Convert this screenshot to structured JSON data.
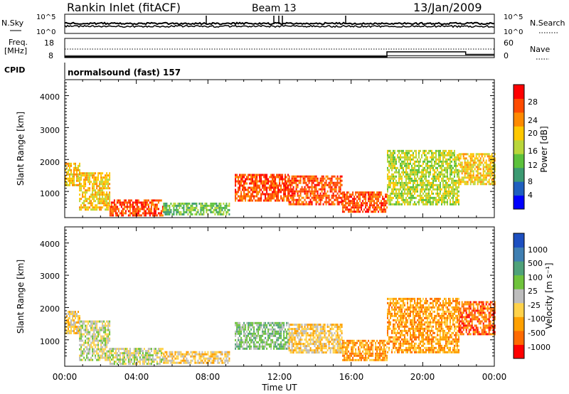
{
  "header": {
    "station": "Rankin Inlet (fitACF)",
    "beam": "Beam 13",
    "date": "13/Jan/2009"
  },
  "top_panel": {
    "left_label": "N.Sky",
    "left_ticks": [
      "10^5",
      "10^0"
    ],
    "right_label": "N.Search",
    "right_ticks": [
      "10^5",
      "10^0"
    ]
  },
  "freq_panel": {
    "left_label_1": "Freq.",
    "left_label_2": "[MHz]",
    "left_ticks": [
      "18",
      "8"
    ],
    "right_label": "Nave",
    "right_ticks": [
      "60",
      "0"
    ],
    "cpid_label": "CPID",
    "cpid_text": "normalsound (fast) 157"
  },
  "power_panel": {
    "ylabel": "Slant Range [km]",
    "yticks": [
      "4000",
      "3000",
      "2000",
      "1000"
    ],
    "colorbar_label": "Power [dB]",
    "colorbar_ticks": [
      "28",
      "24",
      "20",
      "16",
      "12",
      "8",
      "4"
    ],
    "colors": [
      "#0000ff",
      "#1f5fbf",
      "#3c9a72",
      "#5cc13c",
      "#b9d63a",
      "#ffc800",
      "#ff8a00",
      "#ff4b00",
      "#ff0000"
    ]
  },
  "velocity_panel": {
    "ylabel": "Slant Range [km]",
    "yticks": [
      "4000",
      "3000",
      "2000",
      "1000"
    ],
    "colorbar_label": "Velocity [m s⁻¹]",
    "colorbar_ticks": [
      "1000",
      "500",
      "100",
      "25",
      "-25",
      "-100",
      "-500",
      "-1000"
    ],
    "colors": [
      "#1d4fc0",
      "#3f7fb2",
      "#4fa27a",
      "#6fc33c",
      "#bdbdbd",
      "#ffd24a",
      "#ffa000",
      "#ff6a00",
      "#ff0000"
    ]
  },
  "x_axis": {
    "label": "Time UT",
    "ticks": [
      "00:00",
      "04:00",
      "08:00",
      "12:00",
      "16:00",
      "20:00",
      "00:00"
    ]
  },
  "chart_data": {
    "type": "heatmap",
    "x_unit": "hours UT",
    "xlim": [
      0,
      24
    ],
    "ylim_km": [
      180,
      4500
    ],
    "power_regions_dB": [
      {
        "t": [
          0.0,
          0.8
        ],
        "range_km": [
          1200,
          1900
        ],
        "power": 20
      },
      {
        "t": [
          0.8,
          2.5
        ],
        "range_km": [
          400,
          1600
        ],
        "power": 18
      },
      {
        "t": [
          2.5,
          5.5
        ],
        "range_km": [
          250,
          750
        ],
        "power": 26
      },
      {
        "t": [
          5.5,
          9.2
        ],
        "range_km": [
          300,
          650
        ],
        "power": 14
      },
      {
        "t": [
          9.5,
          12.5
        ],
        "range_km": [
          700,
          1550
        ],
        "power": 27
      },
      {
        "t": [
          12.5,
          15.5
        ],
        "range_km": [
          600,
          1500
        ],
        "power": 25
      },
      {
        "t": [
          15.5,
          18.0
        ],
        "range_km": [
          350,
          1000
        ],
        "power": 28
      },
      {
        "t": [
          18.0,
          22.0
        ],
        "range_km": [
          600,
          2300
        ],
        "power": 17
      },
      {
        "t": [
          22.0,
          24.0
        ],
        "range_km": [
          1200,
          2200
        ],
        "power": 18
      }
    ],
    "velocity_regions_ms": [
      {
        "t": [
          0.0,
          0.8
        ],
        "range_km": [
          1200,
          1900
        ],
        "velocity": -300
      },
      {
        "t": [
          0.8,
          2.5
        ],
        "range_km": [
          400,
          1600
        ],
        "velocity": 100
      },
      {
        "t": [
          2.5,
          5.5
        ],
        "range_km": [
          250,
          750
        ],
        "velocity": 50
      },
      {
        "t": [
          5.5,
          9.2
        ],
        "range_km": [
          300,
          650
        ],
        "velocity": -150
      },
      {
        "t": [
          9.5,
          12.5
        ],
        "range_km": [
          700,
          1550
        ],
        "velocity": 300
      },
      {
        "t": [
          12.5,
          15.5
        ],
        "range_km": [
          600,
          1500
        ],
        "velocity": -200
      },
      {
        "t": [
          15.5,
          18.0
        ],
        "range_km": [
          350,
          1000
        ],
        "velocity": -400
      },
      {
        "t": [
          18.0,
          22.0
        ],
        "range_km": [
          600,
          2300
        ],
        "velocity": -600
      },
      {
        "t": [
          22.0,
          24.0
        ],
        "range_km": [
          1200,
          2200
        ],
        "velocity": -700
      }
    ],
    "freq_MHz": [
      {
        "t": 0,
        "value": 9.0
      },
      {
        "t": 24,
        "value": 9.0
      }
    ],
    "nave": [
      {
        "t": 0,
        "value": 3
      },
      {
        "t": 18,
        "value": 3
      },
      {
        "t": 18,
        "value": 18
      },
      {
        "t": 22.4,
        "value": 18
      },
      {
        "t": 22.4,
        "value": 10
      },
      {
        "t": 24,
        "value": 10
      }
    ]
  }
}
